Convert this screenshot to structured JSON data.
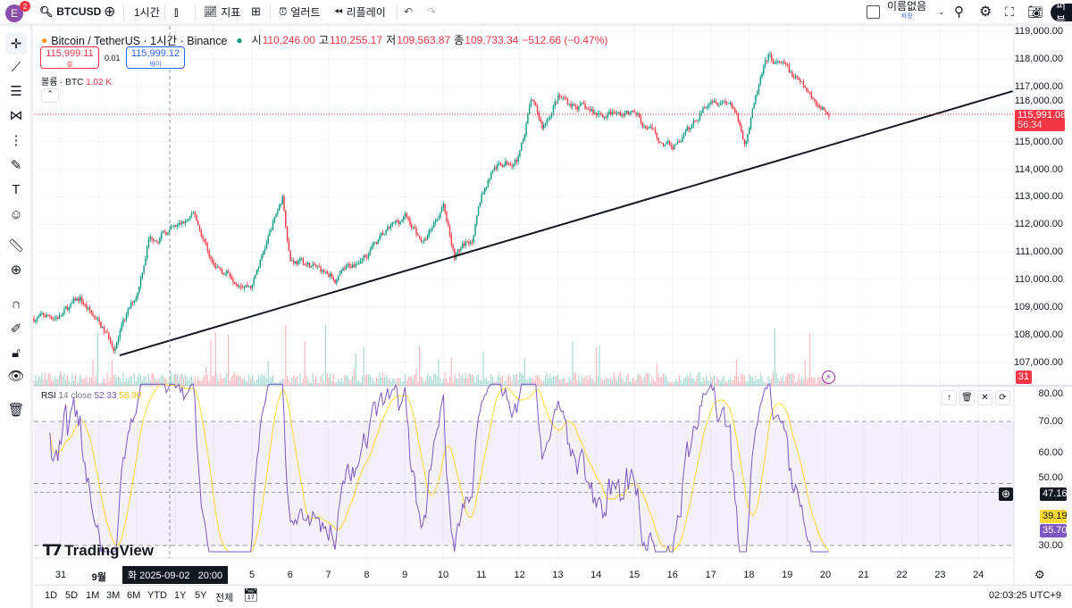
{
  "topbar": {
    "avatar_letter": "E",
    "notif_count": "2",
    "symbol": "BTCUSD",
    "interval": "1시간",
    "indicators": "지표",
    "alert": "얼러트",
    "replay": "리플레이",
    "layout_name": "이름없음",
    "layout_status": "저장",
    "publish": "퍼블"
  },
  "legend": {
    "title": "Bitcoin / TetherUS · 1시간 · Binance",
    "open_label": "시",
    "open": "110,246.00",
    "high_label": "고",
    "high": "110,255.17",
    "low_label": "저",
    "low": "109,563.87",
    "close_label": "종",
    "close": "109,733.34",
    "change": "−512.66 (−0.47%)",
    "sell_price": "115,999.11",
    "sell_label": "셀",
    "spread": "0.01",
    "buy_price": "115,999.12",
    "buy_label": "바이",
    "volume_label": "볼륨 · BTC",
    "volume_value": "1.02 K"
  },
  "price_axis": [
    "119,000.00",
    "118,000.00",
    "117,000.00",
    "116,000.00",
    "115,000.00",
    "114,000.00",
    "113,000.00",
    "112,000.00",
    "111,000.00",
    "110,000.00",
    "109,000.00",
    "108,000.00",
    "107,000.00"
  ],
  "last_price": {
    "value": "115,991.08",
    "countdown": "56:34"
  },
  "volume_tag": "31",
  "rsi": {
    "label": "RSI",
    "params": "14 close",
    "value": "52.33",
    "ma_value": "58.90",
    "axis": [
      "80.00",
      "70.00",
      "60.00",
      "50.00",
      "30.00"
    ],
    "crosshair_value": "47.16",
    "ma_last": "39.19",
    "rsi_last": "35.70"
  },
  "time_axis": [
    "31",
    "9월",
    "5",
    "6",
    "7",
    "8",
    "9",
    "10",
    "11",
    "12",
    "13",
    "14",
    "15",
    "16",
    "17",
    "18",
    "19",
    "20",
    "21",
    "22",
    "23",
    "24"
  ],
  "crosshair_time": "화 2025-09-02   20:00",
  "watermark": "TradingView",
  "ranges": [
    "1D",
    "5D",
    "1M",
    "3M",
    "6M",
    "YTD",
    "1Y",
    "5Y",
    "전체"
  ],
  "clock": "02:03:25 UTC+9",
  "colors": {
    "up": "#089981",
    "down": "#f23645",
    "rsi": "#7e57c2",
    "rsi_ma": "#fdd835"
  },
  "chart_data": {
    "type": "candlestick",
    "interval_hours": 1,
    "x_unit": "day offset from 2025-08-31",
    "price_path": [
      [
        -0.7,
        108600
      ],
      [
        0,
        108700
      ],
      [
        0.5,
        109300
      ],
      [
        1.4,
        107600
      ],
      [
        2,
        109500
      ],
      [
        2.3,
        111500
      ],
      [
        3,
        111800
      ],
      [
        3.5,
        112300
      ],
      [
        4,
        110500
      ],
      [
        5,
        109800
      ],
      [
        5.8,
        113000
      ],
      [
        6,
        110800
      ],
      [
        7,
        110200
      ],
      [
        7.2,
        110000
      ],
      [
        8,
        111000
      ],
      [
        9,
        112300
      ],
      [
        9.5,
        111300
      ],
      [
        10,
        112800
      ],
      [
        10.3,
        110900
      ],
      [
        10.8,
        111600
      ],
      [
        11,
        113000
      ],
      [
        11.3,
        114000
      ],
      [
        12,
        114500
      ],
      [
        12.3,
        116500
      ],
      [
        12.6,
        115500
      ],
      [
        13,
        116600
      ],
      [
        14,
        116000
      ],
      [
        15,
        116000
      ],
      [
        15.7,
        115000
      ],
      [
        16,
        114800
      ],
      [
        16.5,
        115500
      ],
      [
        17,
        116700
      ],
      [
        17.5,
        116500
      ],
      [
        17.9,
        115000
      ],
      [
        18.3,
        117200
      ],
      [
        18.5,
        118000
      ],
      [
        19,
        117600
      ],
      [
        19.5,
        116800
      ],
      [
        20,
        116100
      ],
      [
        20.1,
        115991
      ]
    ],
    "trendline": [
      [
        1.54,
        107250
      ],
      [
        24.9,
        116830
      ]
    ],
    "ylim": [
      106500,
      119200
    ],
    "rsi_ylim": [
      28,
      82
    ]
  }
}
